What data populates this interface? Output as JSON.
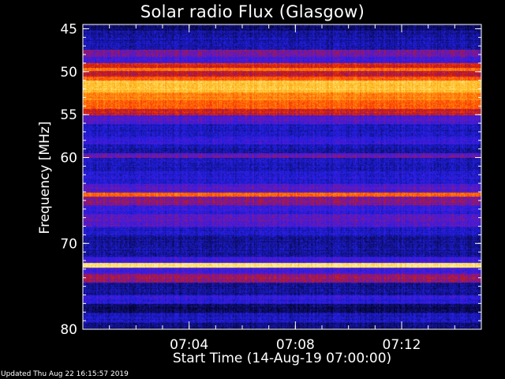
{
  "chart_data": {
    "type": "heatmap",
    "title": "Solar radio Flux (Glasgow)",
    "xlabel": "Start Time (14-Aug-19 07:00:00)",
    "ylabel": "Frequency [MHz]",
    "footer": "Updated Thu Aug 22 16:15:57 2019",
    "x_range_minutes": [
      0,
      15
    ],
    "x_ticks": [
      {
        "minute": 4,
        "label": "07:04"
      },
      {
        "minute": 8,
        "label": "07:08"
      },
      {
        "minute": 12,
        "label": "07:12"
      }
    ],
    "ylim": [
      80,
      44.5
    ],
    "y_ticks": [
      {
        "mhz": 45,
        "label": "45"
      },
      {
        "mhz": 50,
        "label": "50"
      },
      {
        "mhz": 55,
        "label": "55"
      },
      {
        "mhz": 60,
        "label": "60"
      },
      {
        "mhz": 70,
        "label": "70"
      },
      {
        "mhz": 80,
        "label": "80"
      }
    ],
    "colormap": [
      "#000018",
      "#10107a",
      "#2020e8",
      "#6018c8",
      "#c01818",
      "#ff4000",
      "#ff8c10",
      "#ffc428",
      "#fff0a0"
    ],
    "frequency_bands": [
      {
        "from": 44.5,
        "to": 45.2,
        "level": 0.1
      },
      {
        "from": 45.2,
        "to": 47.4,
        "level": 0.18
      },
      {
        "from": 47.4,
        "to": 48.2,
        "level": 0.4
      },
      {
        "from": 48.2,
        "to": 49.0,
        "level": 0.3
      },
      {
        "from": 49.0,
        "to": 49.5,
        "level": 0.55
      },
      {
        "from": 49.5,
        "to": 49.9,
        "level": 0.72
      },
      {
        "from": 49.9,
        "to": 50.5,
        "level": 0.5
      },
      {
        "from": 50.5,
        "to": 51.0,
        "level": 0.65
      },
      {
        "from": 51.0,
        "to": 52.4,
        "level": 0.88
      },
      {
        "from": 52.4,
        "to": 53.3,
        "level": 0.74
      },
      {
        "from": 53.3,
        "to": 54.3,
        "level": 0.66
      },
      {
        "from": 54.3,
        "to": 55.0,
        "level": 0.52
      },
      {
        "from": 55.0,
        "to": 56.0,
        "level": 0.34
      },
      {
        "from": 56.0,
        "to": 57.5,
        "level": 0.22
      },
      {
        "from": 57.5,
        "to": 58.4,
        "level": 0.28
      },
      {
        "from": 58.4,
        "to": 59.4,
        "level": 0.18
      },
      {
        "from": 59.4,
        "to": 60.0,
        "level": 0.38
      },
      {
        "from": 60.0,
        "to": 61.5,
        "level": 0.2
      },
      {
        "from": 61.5,
        "to": 63.0,
        "level": 0.24
      },
      {
        "from": 63.0,
        "to": 64.0,
        "level": 0.34
      },
      {
        "from": 64.0,
        "to": 64.5,
        "level": 0.7
      },
      {
        "from": 64.5,
        "to": 65.5,
        "level": 0.42
      },
      {
        "from": 65.5,
        "to": 66.5,
        "level": 0.28
      },
      {
        "from": 66.5,
        "to": 68.0,
        "level": 0.35
      },
      {
        "from": 68.0,
        "to": 69.0,
        "level": 0.22
      },
      {
        "from": 69.0,
        "to": 71.5,
        "level": 0.16
      },
      {
        "from": 71.5,
        "to": 72.2,
        "level": 0.3
      },
      {
        "from": 72.2,
        "to": 72.8,
        "level": 0.98
      },
      {
        "from": 72.8,
        "to": 73.5,
        "level": 0.32
      },
      {
        "from": 73.5,
        "to": 74.5,
        "level": 0.44
      },
      {
        "from": 74.5,
        "to": 76.0,
        "level": 0.15
      },
      {
        "from": 76.0,
        "to": 77.0,
        "level": 0.26
      },
      {
        "from": 77.0,
        "to": 78.0,
        "level": 0.1
      },
      {
        "from": 78.0,
        "to": 79.2,
        "level": 0.2
      },
      {
        "from": 79.2,
        "to": 80.0,
        "level": 0.12
      }
    ]
  }
}
